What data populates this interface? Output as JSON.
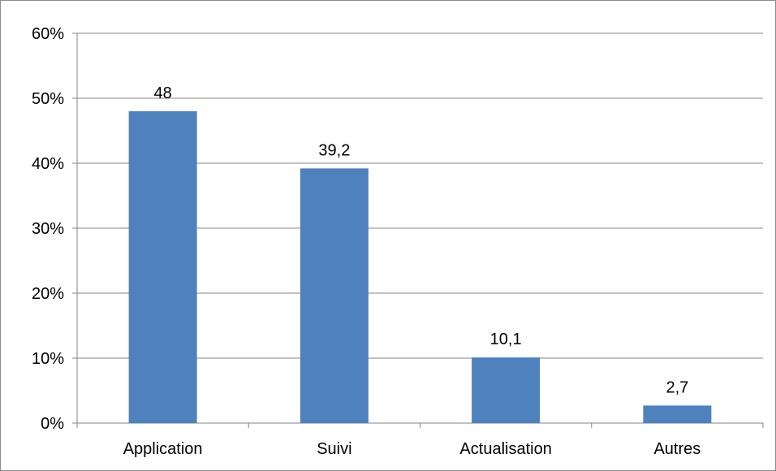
{
  "chart_data": {
    "type": "bar",
    "categories": [
      "Application",
      "Suivi",
      "Actualisation",
      "Autres"
    ],
    "values": [
      48,
      39.2,
      10.1,
      2.7
    ],
    "data_labels": [
      "48",
      "39,2",
      "10,1",
      "2,7"
    ],
    "y_ticks": [
      0,
      10,
      20,
      30,
      40,
      50,
      60
    ],
    "y_tick_labels": [
      "0%",
      "10%",
      "20%",
      "30%",
      "40%",
      "50%",
      "60%"
    ],
    "ylim": [
      0,
      60
    ],
    "grid": true,
    "legend": "none",
    "title": "",
    "xlabel": "",
    "ylabel": "",
    "colors": {
      "bar": "#4F81BD",
      "grid": "#868686",
      "axis": "#868686"
    }
  }
}
